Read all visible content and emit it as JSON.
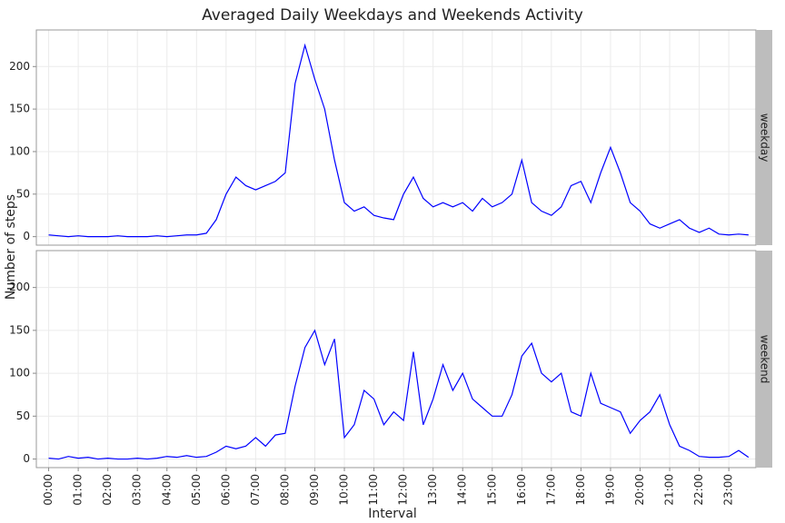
{
  "chart_data": {
    "type": "line",
    "title": "Averaged Daily Weekdays and Weekends Activity",
    "xlabel": "Interval",
    "ylabel": "Number of steps",
    "x": [
      0,
      20,
      40,
      60,
      80,
      100,
      120,
      140,
      160,
      180,
      200,
      220,
      240,
      260,
      280,
      300,
      320,
      340,
      360,
      380,
      400,
      420,
      440,
      460,
      480,
      500,
      520,
      540,
      560,
      580,
      600,
      620,
      640,
      660,
      680,
      700,
      720,
      740,
      760,
      780,
      800,
      820,
      840,
      860,
      880,
      900,
      920,
      940,
      960,
      980,
      1000,
      1020,
      1040,
      1060,
      1080,
      1100,
      1120,
      1140,
      1160,
      1180,
      1200,
      1220,
      1240,
      1260,
      1280,
      1300,
      1320,
      1340,
      1360,
      1380,
      1400,
      1420
    ],
    "xlim": [
      -25,
      1435
    ],
    "xticks": [
      {
        "value": 0,
        "label": "00:00"
      },
      {
        "value": 60,
        "label": "01:00"
      },
      {
        "value": 120,
        "label": "02:00"
      },
      {
        "value": 180,
        "label": "03:00"
      },
      {
        "value": 240,
        "label": "04:00"
      },
      {
        "value": 300,
        "label": "05:00"
      },
      {
        "value": 360,
        "label": "06:00"
      },
      {
        "value": 420,
        "label": "07:00"
      },
      {
        "value": 480,
        "label": "08:00"
      },
      {
        "value": 540,
        "label": "09:00"
      },
      {
        "value": 600,
        "label": "10:00"
      },
      {
        "value": 660,
        "label": "11:00"
      },
      {
        "value": 720,
        "label": "12:00"
      },
      {
        "value": 780,
        "label": "13:00"
      },
      {
        "value": 840,
        "label": "14:00"
      },
      {
        "value": 900,
        "label": "15:00"
      },
      {
        "value": 960,
        "label": "16:00"
      },
      {
        "value": 1020,
        "label": "17:00"
      },
      {
        "value": 1080,
        "label": "18:00"
      },
      {
        "value": 1140,
        "label": "19:00"
      },
      {
        "value": 1200,
        "label": "20:00"
      },
      {
        "value": 1260,
        "label": "21:00"
      },
      {
        "value": 1320,
        "label": "22:00"
      },
      {
        "value": 1380,
        "label": "23:00"
      }
    ],
    "ylim": [
      -10,
      243
    ],
    "yticks": [
      0,
      50,
      100,
      150,
      200
    ],
    "grid": true,
    "series": [
      {
        "name": "weekday",
        "color": "#0000ff",
        "values": [
          2,
          1,
          0,
          1,
          0,
          0,
          0,
          1,
          0,
          0,
          0,
          1,
          0,
          1,
          2,
          2,
          4,
          20,
          50,
          70,
          60,
          55,
          60,
          65,
          75,
          180,
          225,
          185,
          150,
          90,
          40,
          30,
          35,
          25,
          22,
          20,
          50,
          70,
          45,
          35,
          40,
          35,
          40,
          30,
          45,
          35,
          40,
          50,
          90,
          40,
          30,
          25,
          35,
          60,
          65,
          40,
          75,
          105,
          75,
          40,
          30,
          15,
          10,
          15,
          20,
          10,
          5,
          10,
          3,
          2,
          3,
          2
        ]
      },
      {
        "name": "weekend",
        "color": "#0000ff",
        "values": [
          1,
          0,
          3,
          1,
          2,
          0,
          1,
          0,
          0,
          1,
          0,
          1,
          3,
          2,
          4,
          2,
          3,
          8,
          15,
          12,
          15,
          25,
          15,
          28,
          30,
          85,
          130,
          150,
          110,
          140,
          25,
          40,
          80,
          70,
          40,
          55,
          45,
          125,
          40,
          70,
          110,
          80,
          100,
          70,
          60,
          50,
          50,
          75,
          120,
          135,
          100,
          90,
          100,
          55,
          50,
          100,
          65,
          60,
          55,
          30,
          45,
          55,
          75,
          40,
          15,
          10,
          3,
          2,
          2,
          3,
          10,
          2
        ]
      }
    ]
  }
}
